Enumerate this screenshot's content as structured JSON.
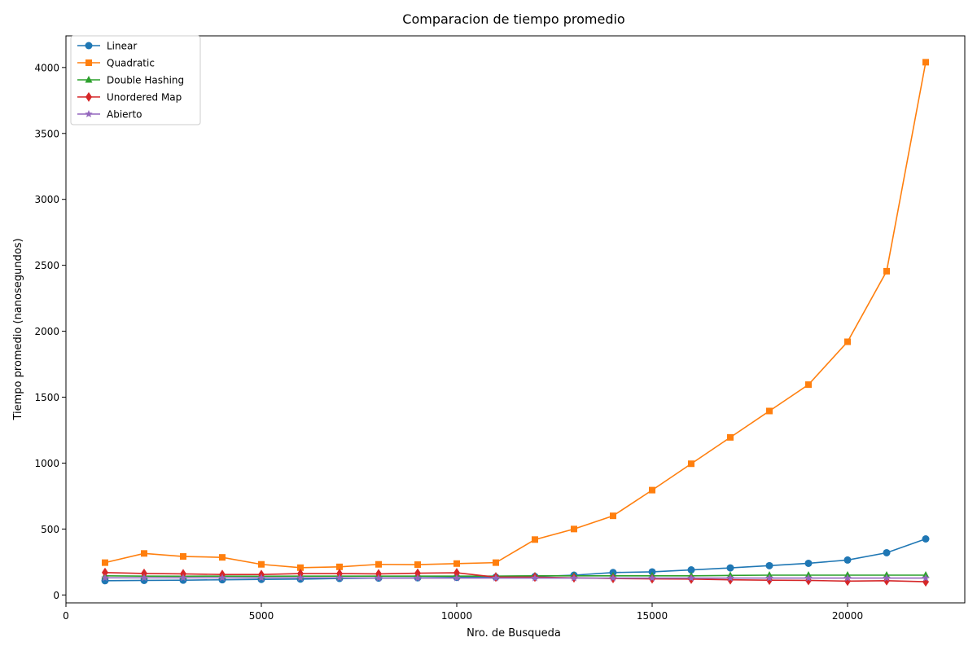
{
  "chart_data": {
    "type": "line",
    "title": "Comparacion de tiempo promedio",
    "xlabel": "Nro. de Busqueda",
    "ylabel": "Tiempo promedio (nanosegundos)",
    "xlim": [
      0,
      23000
    ],
    "ylim": [
      -60,
      4240
    ],
    "xticks": [
      0,
      5000,
      10000,
      15000,
      20000
    ],
    "yticks": [
      0,
      500,
      1000,
      1500,
      2000,
      2500,
      3000,
      3500,
      4000
    ],
    "grid": false,
    "legend_position": "top-left",
    "x": [
      1000,
      2000,
      3000,
      4000,
      5000,
      6000,
      7000,
      8000,
      9000,
      10000,
      11000,
      12000,
      13000,
      14000,
      15000,
      16000,
      17000,
      18000,
      19000,
      20000,
      21000,
      22000
    ],
    "series": [
      {
        "name": "Linear",
        "color": "#1f77b4",
        "marker": "circle",
        "values": [
          108,
          110,
          112,
          115,
          118,
          120,
          125,
          128,
          130,
          133,
          135,
          140,
          150,
          170,
          175,
          190,
          205,
          222,
          240,
          265,
          320,
          425
        ]
      },
      {
        "name": "Quadratic",
        "color": "#ff7f0e",
        "marker": "square",
        "values": [
          245,
          315,
          292,
          285,
          232,
          207,
          213,
          232,
          230,
          238,
          245,
          420,
          500,
          600,
          795,
          995,
          1195,
          1395,
          1595,
          1920,
          2455,
          4040
        ]
      },
      {
        "name": "Double Hashing",
        "color": "#2ca02c",
        "marker": "triangle",
        "values": [
          145,
          143,
          142,
          143,
          142,
          143,
          143,
          143,
          143,
          143,
          143,
          145,
          145,
          145,
          145,
          145,
          148,
          150,
          150,
          150,
          150,
          150
        ]
      },
      {
        "name": "Unordered Map",
        "color": "#d62728",
        "marker": "diamond",
        "values": [
          170,
          163,
          160,
          155,
          155,
          162,
          162,
          160,
          165,
          168,
          135,
          135,
          130,
          125,
          122,
          120,
          115,
          112,
          110,
          105,
          108,
          100
        ]
      },
      {
        "name": "Abierto",
        "color": "#9467bd",
        "marker": "star",
        "values": [
          130,
          130,
          130,
          130,
          130,
          130,
          130,
          128,
          128,
          128,
          128,
          128,
          128,
          128,
          128,
          128,
          128,
          128,
          128,
          128,
          128,
          128
        ]
      }
    ]
  }
}
